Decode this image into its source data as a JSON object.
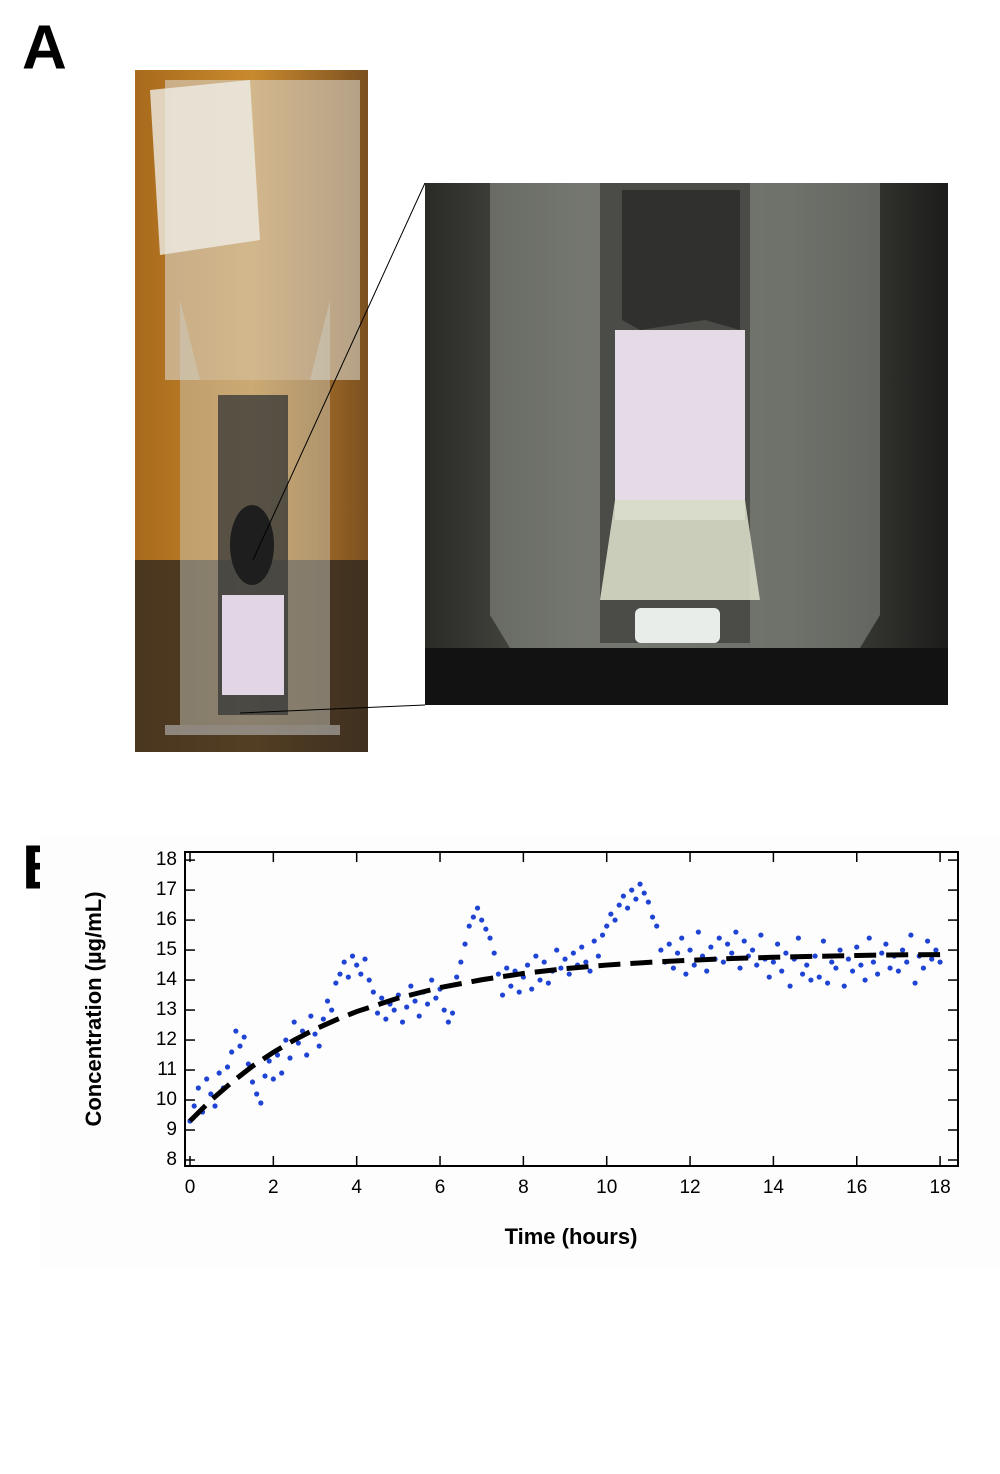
{
  "figure": {
    "panel_a_label": "A",
    "panel_b_label": "B"
  },
  "chart_data": {
    "type": "scatter",
    "x_label": "Time (hours)",
    "y_label": "Concentration (µg/mL)",
    "xlim": [
      -0.12,
      18.43
    ],
    "ylim": [
      7.8,
      18.27
    ],
    "xticks": [
      0,
      2,
      4,
      6,
      8,
      10,
      12,
      14,
      16,
      18
    ],
    "yticks": [
      8,
      9,
      10,
      11,
      12,
      13,
      14,
      15,
      16,
      17,
      18
    ],
    "grid": false,
    "series": [
      {
        "type": "scatter",
        "color": "#1f44d4",
        "x": [
          0,
          0.1,
          0.2,
          0.3,
          0.4,
          0.5,
          0.6,
          0.7,
          0.8,
          0.9,
          1,
          1.1,
          1.2,
          1.3,
          1.4,
          1.5,
          1.6,
          1.7,
          1.8,
          1.9,
          2,
          2.1,
          2.2,
          2.3,
          2.4,
          2.5,
          2.6,
          2.7,
          2.8,
          2.9,
          3,
          3.1,
          3.2,
          3.3,
          3.4,
          3.5,
          3.6,
          3.7,
          3.8,
          3.9,
          4,
          4.1,
          4.2,
          4.3,
          4.4,
          4.5,
          4.6,
          4.7,
          4.8,
          4.9,
          5,
          5.1,
          5.2,
          5.3,
          5.4,
          5.5,
          5.6,
          5.7,
          5.8,
          5.9,
          6,
          6.1,
          6.2,
          6.3,
          6.4,
          6.5,
          6.6,
          6.7,
          6.8,
          6.9,
          7,
          7.1,
          7.2,
          7.3,
          7.4,
          7.5,
          7.6,
          7.7,
          7.8,
          7.9,
          8,
          8.1,
          8.2,
          8.3,
          8.4,
          8.5,
          8.6,
          8.7,
          8.8,
          8.9,
          9,
          9.1,
          9.2,
          9.3,
          9.4,
          9.5,
          9.6,
          9.7,
          9.8,
          9.9,
          10,
          10.1,
          10.2,
          10.3,
          10.4,
          10.5,
          10.6,
          10.7,
          10.8,
          10.9,
          11,
          11.1,
          11.2,
          11.3,
          11.4,
          11.5,
          11.6,
          11.7,
          11.8,
          11.9,
          12,
          12.1,
          12.2,
          12.3,
          12.4,
          12.5,
          12.6,
          12.7,
          12.8,
          12.9,
          13,
          13.1,
          13.2,
          13.3,
          13.4,
          13.5,
          13.6,
          13.7,
          13.8,
          13.9,
          14,
          14.1,
          14.2,
          14.3,
          14.4,
          14.5,
          14.6,
          14.7,
          14.8,
          14.9,
          15,
          15.1,
          15.2,
          15.3,
          15.4,
          15.5,
          15.6,
          15.7,
          15.8,
          15.9,
          16,
          16.1,
          16.2,
          16.3,
          16.4,
          16.5,
          16.6,
          16.7,
          16.8,
          16.9,
          17,
          17.1,
          17.2,
          17.3,
          17.4,
          17.5,
          17.6,
          17.7,
          17.8,
          17.9,
          18
        ],
        "values": [
          9.3,
          9.8,
          10.4,
          9.6,
          10.7,
          10.2,
          9.8,
          10.9,
          10.4,
          11.1,
          11.6,
          12.3,
          11.8,
          12.1,
          11.2,
          10.6,
          10.2,
          9.9,
          10.8,
          11.3,
          10.7,
          11.5,
          10.9,
          12.0,
          11.4,
          12.6,
          11.9,
          12.3,
          11.5,
          12.8,
          12.2,
          11.8,
          12.7,
          13.3,
          13.0,
          13.9,
          14.2,
          14.6,
          14.1,
          14.8,
          14.5,
          14.2,
          14.7,
          14.0,
          13.6,
          12.9,
          13.4,
          12.7,
          13.2,
          13.0,
          13.5,
          12.6,
          13.1,
          13.8,
          13.3,
          12.8,
          13.6,
          13.2,
          14.0,
          13.4,
          13.7,
          13.0,
          12.6,
          12.9,
          14.1,
          14.6,
          15.2,
          15.8,
          16.1,
          16.4,
          16.0,
          15.7,
          15.4,
          14.9,
          14.2,
          13.5,
          14.4,
          13.8,
          14.3,
          13.6,
          14.1,
          14.5,
          13.7,
          14.8,
          14.0,
          14.6,
          13.9,
          14.3,
          15.0,
          14.4,
          14.7,
          14.2,
          14.9,
          14.5,
          15.1,
          14.6,
          14.3,
          15.3,
          14.8,
          15.5,
          15.8,
          16.2,
          16.0,
          16.5,
          16.8,
          16.4,
          17.0,
          16.7,
          17.2,
          16.9,
          16.6,
          16.1,
          15.8,
          15.0,
          14.6,
          15.2,
          14.4,
          14.9,
          15.4,
          14.2,
          15.0,
          14.5,
          15.6,
          14.8,
          14.3,
          15.1,
          14.7,
          15.4,
          14.6,
          15.2,
          14.9,
          15.6,
          14.4,
          15.3,
          14.8,
          15.0,
          14.5,
          15.5,
          14.7,
          14.1,
          14.6,
          15.2,
          14.3,
          14.9,
          13.8,
          14.7,
          15.4,
          14.2,
          14.5,
          14.0,
          14.8,
          14.1,
          15.3,
          13.9,
          14.6,
          14.4,
          15.0,
          13.8,
          14.7,
          14.3,
          15.1,
          14.5,
          14.0,
          15.4,
          14.6,
          14.2,
          14.9,
          15.2,
          14.4,
          14.8,
          14.3,
          15.0,
          14.6,
          15.5,
          13.9,
          14.8,
          14.4,
          15.3,
          14.7,
          15.0,
          14.6
        ]
      },
      {
        "type": "line",
        "color": "#000000",
        "style": "dashed",
        "x": [
          0,
          0.5,
          1,
          1.5,
          2,
          2.5,
          3,
          3.5,
          4,
          5,
          6,
          7,
          8,
          9,
          10,
          11,
          12,
          13,
          14,
          15,
          16,
          17,
          18
        ],
        "values": [
          9.3,
          9.99,
          10.59,
          11.13,
          11.59,
          12.0,
          12.36,
          12.67,
          12.95,
          13.4,
          13.75,
          14.01,
          14.22,
          14.38,
          14.5,
          14.59,
          14.66,
          14.72,
          14.76,
          14.79,
          14.82,
          14.84,
          14.85
        ]
      }
    ]
  }
}
